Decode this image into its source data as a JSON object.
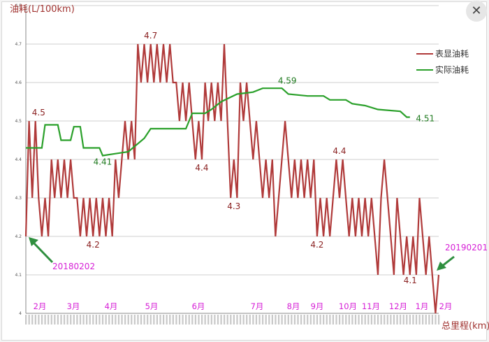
{
  "chart_data": {
    "type": "line",
    "ylabel": "油耗(L/100km)",
    "xlabel": "总里程(km)",
    "ylim": [
      4.0,
      4.8
    ],
    "yticks": [
      "4",
      "4.1",
      "4.2",
      "4.3",
      "4.4",
      "4.5",
      "4.6",
      "4.7",
      "4.8"
    ],
    "grid": true,
    "legend_position": "right",
    "x_count": 130,
    "series": [
      {
        "name": "表显油耗",
        "color": "#b03a3a",
        "values": [
          4.2,
          4.5,
          4.3,
          4.5,
          4.3,
          4.2,
          4.3,
          4.2,
          4.4,
          4.3,
          4.4,
          4.3,
          4.4,
          4.3,
          4.4,
          4.3,
          4.3,
          4.2,
          4.3,
          4.2,
          4.3,
          4.2,
          4.3,
          4.2,
          4.3,
          4.2,
          4.3,
          4.2,
          4.4,
          4.3,
          4.4,
          4.5,
          4.4,
          4.5,
          4.4,
          4.7,
          4.6,
          4.7,
          4.6,
          4.7,
          4.6,
          4.7,
          4.6,
          4.7,
          4.6,
          4.7,
          4.6,
          4.6,
          4.5,
          4.6,
          4.5,
          4.6,
          4.5,
          4.4,
          4.5,
          4.4,
          4.6,
          4.5,
          4.6,
          4.5,
          4.6,
          4.5,
          4.7,
          4.5,
          4.3,
          4.4,
          4.3,
          4.6,
          4.5,
          4.6,
          4.5,
          4.4,
          4.5,
          4.4,
          4.3,
          4.4,
          4.3,
          4.4,
          4.2,
          4.3,
          4.4,
          4.5,
          4.4,
          4.3,
          4.4,
          4.3,
          4.4,
          4.3,
          4.4,
          4.3,
          4.4,
          4.2,
          4.3,
          4.2,
          4.3,
          4.2,
          4.3,
          4.4,
          4.3,
          4.4,
          4.3,
          4.2,
          4.3,
          4.2,
          4.3,
          4.2,
          4.3,
          4.2,
          4.3,
          4.2,
          4.1,
          4.3,
          4.4,
          4.3,
          4.2,
          4.1,
          4.3,
          4.2,
          4.1,
          4.2,
          4.1,
          4.2,
          4.1,
          4.3,
          4.2,
          4.1,
          4.2,
          4.1,
          4.0,
          4.1
        ]
      },
      {
        "name": "实际油耗",
        "color": "#2aa02a",
        "steps": [
          [
            0,
            4.43
          ],
          [
            5,
            4.43
          ],
          [
            6,
            4.49
          ],
          [
            10,
            4.49
          ],
          [
            11,
            4.45
          ],
          [
            14,
            4.45
          ],
          [
            15,
            4.485
          ],
          [
            17,
            4.485
          ],
          [
            18,
            4.43
          ],
          [
            23,
            4.43
          ],
          [
            24,
            4.41
          ],
          [
            28,
            4.415
          ],
          [
            32,
            4.42
          ],
          [
            37,
            4.455
          ],
          [
            39,
            4.48
          ],
          [
            50,
            4.48
          ],
          [
            52,
            4.52
          ],
          [
            56,
            4.52
          ],
          [
            58,
            4.53
          ],
          [
            61,
            4.55
          ],
          [
            66,
            4.57
          ],
          [
            71,
            4.575
          ],
          [
            74,
            4.585
          ],
          [
            80,
            4.585
          ],
          [
            82,
            4.57
          ],
          [
            88,
            4.565
          ],
          [
            93,
            4.565
          ],
          [
            95,
            4.555
          ],
          [
            100,
            4.555
          ],
          [
            102,
            4.545
          ],
          [
            106,
            4.54
          ],
          [
            110,
            4.53
          ],
          [
            117,
            4.525
          ],
          [
            119,
            4.51
          ],
          [
            120,
            4.51
          ]
        ]
      }
    ],
    "annotations": {
      "red": [
        {
          "text": "4.5",
          "x": 4,
          "y": 4.5
        },
        {
          "text": "4.7",
          "x": 39,
          "y": 4.7
        },
        {
          "text": "4.2",
          "x": 21,
          "y": 4.2
        },
        {
          "text": "4.4",
          "x": 55,
          "y": 4.4
        },
        {
          "text": "4.3",
          "x": 65,
          "y": 4.3
        },
        {
          "text": "4.2",
          "x": 91,
          "y": 4.2
        },
        {
          "text": "4.4",
          "x": 98,
          "y": 4.4
        },
        {
          "text": "4.1",
          "x": 114,
          "y": 4.1
        }
      ],
      "green": [
        {
          "text": "4.41",
          "x": 24,
          "y": 4.41
        },
        {
          "text": "4.59",
          "x": 76,
          "y": 4.59
        },
        {
          "text": "4.51",
          "x": 120,
          "y": 4.51
        }
      ],
      "dates": [
        "20180202",
        "20190201"
      ]
    },
    "months": [
      "2月",
      "3月",
      "4月",
      "5月",
      "6月",
      "7月",
      "8月",
      "9月",
      "10月",
      "11月",
      "12月",
      "1月",
      "2月"
    ]
  }
}
